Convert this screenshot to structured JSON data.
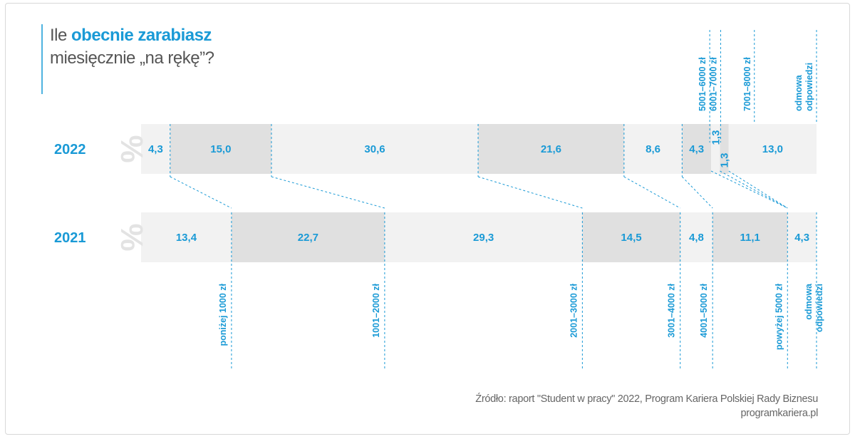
{
  "title": {
    "line1_prefix": "Ile ",
    "line1_strong": "obecnie zarabiasz",
    "line2": "miesięcznie „na rękę”?"
  },
  "source": {
    "line1": "Źródło: raport \"Student w pracy\" 2022, Program Kariera Polskiej Rady Biznesu",
    "line2": "programkariera.pl"
  },
  "colors": {
    "accent": "#1a9ad6",
    "segment_light": "#f2f2f2",
    "segment_dark": "#e0e0e0",
    "percent_sign": "#e3e3e3"
  },
  "chart_data": {
    "type": "bar",
    "stacked": true,
    "orientation": "horizontal",
    "unit_symbol": "%",
    "xlim": [
      0,
      100
    ],
    "series": [
      {
        "name": "2022",
        "categories": [
          "poniżej 1000 zł",
          "1001–2000 zł",
          "2001–3000 zł",
          "3001–4000 zł",
          "4001–5000 zł",
          "5001–6000 zł",
          "6001–7000 zł",
          "7001–8000 zł",
          "odmowa odpowiedzi"
        ],
        "values": [
          4.3,
          15.0,
          30.6,
          21.6,
          8.6,
          4.3,
          1.3,
          1.3,
          13.0
        ],
        "labels": [
          "4,3",
          "15,0",
          "30,6",
          "21,6",
          "8,6",
          "4,3",
          "1,3",
          "1,3",
          "13,0"
        ]
      },
      {
        "name": "2021",
        "categories": [
          "poniżej 1000 zł",
          "1001–2000 zł",
          "2001–3000 zł",
          "3001–4000 zł",
          "4001–5000 zł",
          "powyżej 5000 zł",
          "odmowa odpowiedzi"
        ],
        "values": [
          13.4,
          22.7,
          29.3,
          14.5,
          4.8,
          11.1,
          4.3
        ],
        "labels": [
          "13,4",
          "22,7",
          "29,3",
          "14,5",
          "4,8",
          "11,1",
          "4,3"
        ]
      }
    ],
    "top_category_labels": [
      "5001–6000 zł",
      "6001–7000 zł",
      "7001–8000 zł",
      "odmowa odpowiedzi"
    ],
    "bottom_category_labels": [
      "poniżej 1000 zł",
      "1001–2000 zł",
      "2001–3000 zł",
      "3001–4000 zł",
      "4001–5000 zł",
      "powyżej 5000 zł",
      "odmowa odpowiedzi"
    ]
  }
}
